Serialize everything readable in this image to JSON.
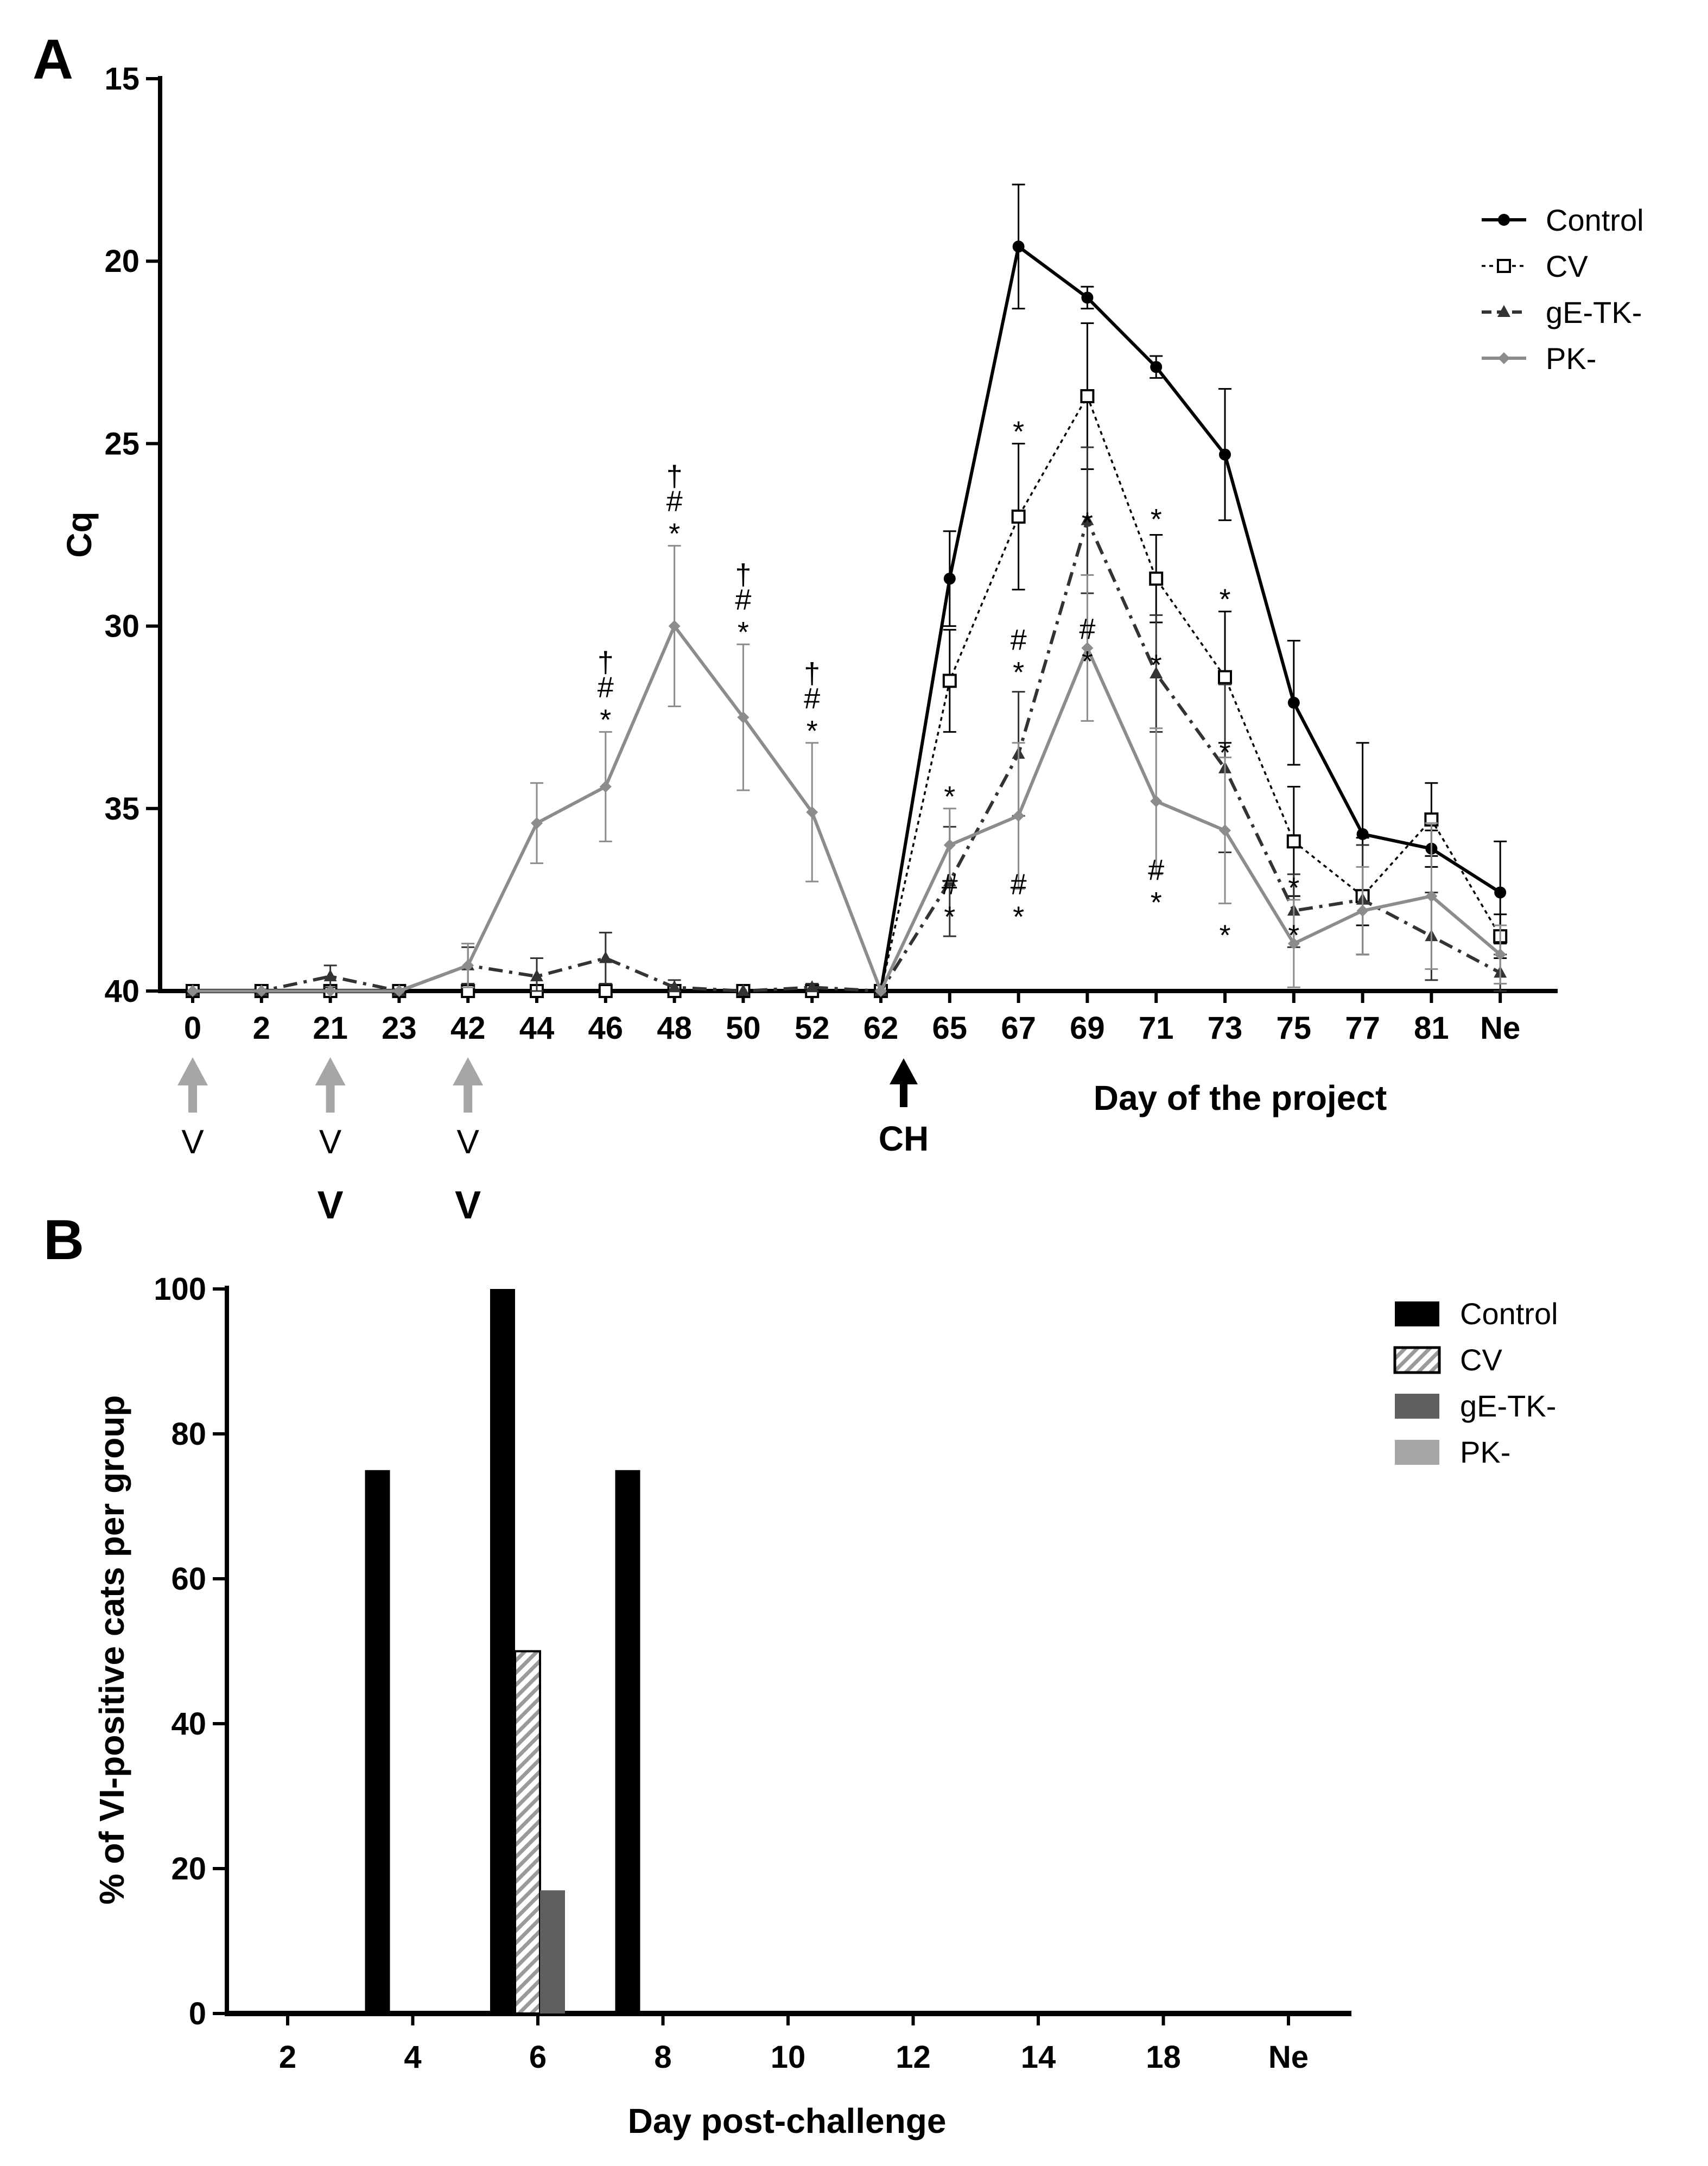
{
  "chart_data": [
    {
      "panel": "A",
      "type": "line",
      "ylabel": "Cq",
      "xlabel": "Day of the project",
      "ylim": [
        40,
        15
      ],
      "yaxis_inverted": true,
      "yticks": [
        "15",
        "20",
        "25",
        "30",
        "35",
        "40"
      ],
      "categories": [
        "0",
        "2",
        "21",
        "23",
        "42",
        "44",
        "46",
        "48",
        "50",
        "52",
        "62",
        "65",
        "67",
        "69",
        "71",
        "73",
        "75",
        "77",
        "81",
        "Ne"
      ],
      "series": [
        {
          "name": "Control",
          "color": "#000000",
          "marker": "circle",
          "line": "solid",
          "values": [
            40,
            40,
            40,
            40,
            40,
            40,
            40,
            40,
            40,
            40,
            40,
            28.7,
            19.6,
            21.0,
            22.9,
            25.3,
            32.1,
            35.7,
            36.1,
            37.3
          ],
          "errors": [
            0,
            0,
            0,
            0,
            0,
            0,
            0,
            0,
            0,
            0,
            0,
            1.3,
            1.7,
            0.3,
            0.3,
            1.8,
            1.7,
            2.5,
            0.5,
            1.4
          ]
        },
        {
          "name": "CV",
          "color": "#000000",
          "marker": "open-square",
          "line": "dotted",
          "values": [
            40,
            40,
            40,
            40,
            40,
            40,
            40,
            40,
            40,
            40,
            40,
            31.5,
            27.0,
            23.7,
            28.7,
            31.4,
            35.9,
            37.4,
            35.3,
            38.5
          ],
          "errors": [
            0,
            0,
            0,
            0,
            0,
            0,
            0,
            0,
            0,
            0,
            0,
            1.4,
            2.0,
            2.0,
            1.2,
            1.8,
            1.5,
            1.6,
            1.0,
            0.6
          ]
        },
        {
          "name": "gE-TK-",
          "color": "#333333",
          "marker": "triangle",
          "line": "dashdot",
          "values": [
            40,
            40,
            39.6,
            40,
            39.3,
            39.6,
            39.1,
            39.9,
            40,
            39.9,
            40,
            37.0,
            33.5,
            27.1,
            31.3,
            33.9,
            37.8,
            37.5,
            38.5,
            39.5
          ],
          "errors": [
            0,
            0,
            0.3,
            0,
            0.5,
            0.5,
            0.7,
            0.2,
            0,
            0.1,
            0,
            1.5,
            1.7,
            2.0,
            1.6,
            2.3,
            1.0,
            1.5,
            1.2,
            0.5
          ]
        },
        {
          "name": "PK-",
          "color": "#8c8c8c",
          "marker": "diamond",
          "line": "solid",
          "values": [
            40,
            40,
            40,
            40,
            39.3,
            35.4,
            34.4,
            30.0,
            32.5,
            35.1,
            40,
            36.0,
            35.2,
            30.6,
            34.8,
            35.6,
            38.7,
            37.8,
            37.4,
            39.0
          ],
          "errors": [
            0,
            0,
            0,
            0,
            0.6,
            1.1,
            1.5,
            2.2,
            2.0,
            1.9,
            0,
            1.0,
            2.0,
            2.0,
            2.0,
            2.0,
            1.2,
            1.2,
            2.0,
            0.8
          ]
        }
      ],
      "annotations": [
        {
          "category": "46",
          "above_value": 32.9,
          "text": [
            "†",
            "#",
            "*"
          ]
        },
        {
          "category": "48",
          "above_value": 27.8,
          "text": [
            "†",
            "#",
            "*"
          ]
        },
        {
          "category": "50",
          "above_value": 30.5,
          "text": [
            "†",
            "#",
            "*"
          ]
        },
        {
          "category": "52",
          "above_value": 33.2,
          "text": [
            "†",
            "#",
            "*"
          ]
        },
        {
          "category": "65",
          "above_value": 35.0,
          "text": [
            "*"
          ]
        },
        {
          "category": "65",
          "above_value": 38.3,
          "text": [
            "#",
            "*"
          ]
        },
        {
          "category": "67",
          "above_value": 25.0,
          "text": [
            "*"
          ]
        },
        {
          "category": "67",
          "above_value": 31.6,
          "text": [
            "#",
            "*"
          ]
        },
        {
          "category": "67",
          "above_value": 38.3,
          "text": [
            "#",
            "*"
          ]
        },
        {
          "category": "69",
          "above_value": 27.5,
          "text": [
            "*"
          ]
        },
        {
          "category": "69",
          "above_value": 31.3,
          "text": [
            "#",
            "*"
          ]
        },
        {
          "category": "71",
          "above_value": 27.4,
          "text": [
            "*"
          ]
        },
        {
          "category": "71",
          "above_value": 31.4,
          "text": [
            "*"
          ]
        },
        {
          "category": "71",
          "above_value": 37.9,
          "text": [
            "#",
            "*"
          ]
        },
        {
          "category": "73",
          "above_value": 29.6,
          "text": [
            "*"
          ]
        },
        {
          "category": "73",
          "above_value": 33.8,
          "text": [
            "*"
          ]
        },
        {
          "category": "73",
          "above_value": 38.8,
          "text": [
            "*"
          ]
        },
        {
          "category": "75",
          "above_value": 37.5,
          "text": [
            "*"
          ]
        },
        {
          "category": "75",
          "above_value": 38.8,
          "text": [
            "*"
          ]
        }
      ],
      "vaccination_markers": [
        {
          "category": "0",
          "label": "V",
          "color": "#a6a6a6",
          "bold_label": ""
        },
        {
          "category": "21",
          "label": "V",
          "color": "#a6a6a6",
          "bold_label": "V"
        },
        {
          "category": "42",
          "label": "V",
          "color": "#a6a6a6",
          "bold_label": "V"
        }
      ],
      "challenge_marker": {
        "category": "62",
        "label": "CH",
        "color": "#000000"
      }
    },
    {
      "panel": "B",
      "type": "bar",
      "ylabel": "% of VI-positive cats per group",
      "xlabel": "Day post-challenge",
      "ylim": [
        0,
        100
      ],
      "yticks": [
        "0",
        "20",
        "40",
        "60",
        "80",
        "100"
      ],
      "categories": [
        "2",
        "4",
        "6",
        "8",
        "10",
        "12",
        "14",
        "18",
        "Ne"
      ],
      "series": [
        {
          "name": "Control",
          "color": "#000000",
          "pattern": "solid",
          "values": [
            0,
            75,
            100,
            75,
            0,
            0,
            0,
            0,
            0
          ]
        },
        {
          "name": "CV",
          "color": "#ffffff",
          "pattern": "hatched",
          "values": [
            0,
            0,
            50,
            0,
            0,
            0,
            0,
            0,
            0
          ]
        },
        {
          "name": "gE-TK-",
          "color": "#5f5f5f",
          "pattern": "solid",
          "values": [
            0,
            0,
            17,
            0,
            0,
            0,
            0,
            0,
            0
          ]
        },
        {
          "name": "PK-",
          "color": "#a6a6a6",
          "pattern": "solid",
          "values": [
            0,
            0,
            0,
            0,
            0,
            0,
            0,
            0,
            0
          ]
        }
      ]
    }
  ]
}
